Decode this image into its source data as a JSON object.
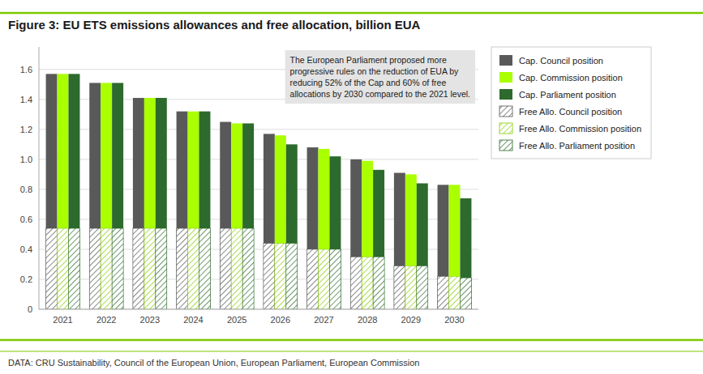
{
  "chart_data": {
    "type": "bar",
    "title": "Figure 3: EU ETS emissions allowances and free allocation, billion EUA",
    "subtitle": "DATA: CRU Sustainability, Council of the European Union, European Parliament, European Commission",
    "annotation": "The European Parliament proposed more\nprogressive rules on the reduction of EUA by\nreducing 52% of the Cap and 60% of free\nallocations by 2030 compared to the 2021 level.",
    "categories": [
      "2021",
      "2022",
      "2023",
      "2024",
      "2025",
      "2026",
      "2027",
      "2028",
      "2029",
      "2030"
    ],
    "series": [
      {
        "name": "Cap. Council position",
        "color": "#595959",
        "values": [
          1.57,
          1.51,
          1.41,
          1.32,
          1.25,
          1.17,
          1.08,
          1.0,
          0.91,
          0.83
        ]
      },
      {
        "name": "Cap. Commission position",
        "color": "#aaff00",
        "values": [
          1.57,
          1.51,
          1.41,
          1.32,
          1.24,
          1.16,
          1.07,
          0.99,
          0.9,
          0.83
        ]
      },
      {
        "name": "Cap. Parliament position",
        "color": "#2d6a2d",
        "values": [
          1.57,
          1.51,
          1.41,
          1.32,
          1.24,
          1.1,
          1.02,
          0.93,
          0.84,
          0.74
        ]
      },
      {
        "name": "Free Allo. Council position",
        "color": "#555555",
        "values": [
          0.54,
          0.54,
          0.54,
          0.54,
          0.54,
          0.44,
          0.4,
          0.35,
          0.29,
          0.22
        ]
      },
      {
        "name": "Free Allo. Commission position",
        "color": "#88cc00",
        "values": [
          0.54,
          0.54,
          0.54,
          0.54,
          0.54,
          0.44,
          0.4,
          0.35,
          0.29,
          0.22
        ]
      },
      {
        "name": "Free Allo. Parliament position",
        "color": "#2d6a2d",
        "values": [
          0.54,
          0.54,
          0.54,
          0.54,
          0.54,
          0.44,
          0.4,
          0.35,
          0.29,
          0.21
        ]
      }
    ],
    "ylim": [
      0,
      1.75
    ],
    "yticks": [
      0,
      0.2,
      0.4,
      0.6,
      0.8,
      {
        "value": 1.0,
        "label": "1.0"
      },
      1.2,
      1.4,
      1.6
    ],
    "grid": true,
    "legend": "right"
  }
}
